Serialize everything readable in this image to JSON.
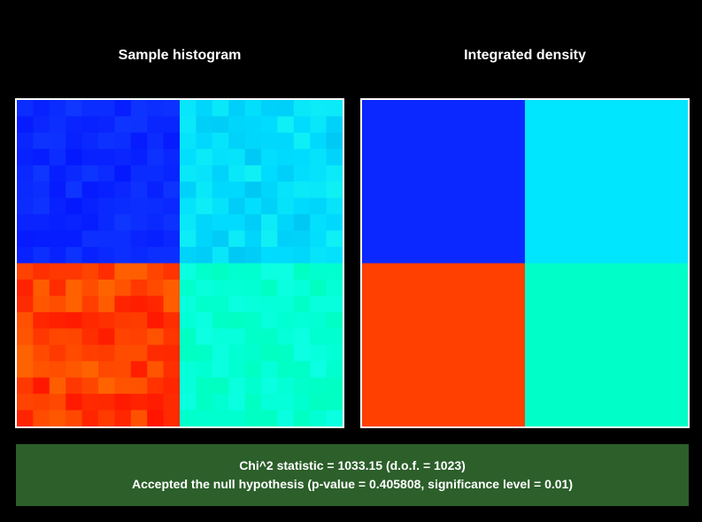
{
  "titles": {
    "left": "Sample histogram",
    "right": "Integrated density"
  },
  "result": {
    "line1": "Chi^2 statistic = 1033.15 (d.o.f. = 1023)",
    "line2": "Accepted the null hypothesis (p-value = 0.405808, significance level = 0.01)",
    "status_color": "#2c5f2a"
  },
  "chart_data": [
    {
      "type": "heatmap",
      "title": "Sample histogram",
      "grid": [
        20,
        20
      ],
      "quadrants": [
        {
          "position": "top-left",
          "color": "#0a28ff",
          "noise": "low"
        },
        {
          "position": "top-right",
          "color": "#00dcff",
          "noise": "low"
        },
        {
          "position": "bottom-left",
          "color": "#ff3c00",
          "noise": "high"
        },
        {
          "position": "bottom-right",
          "color": "#00ffd2",
          "noise": "low"
        }
      ]
    },
    {
      "type": "heatmap",
      "title": "Integrated density",
      "grid": [
        2,
        2
      ],
      "quadrants": [
        {
          "position": "top-left",
          "color": "#0a28ff"
        },
        {
          "position": "top-right",
          "color": "#00e6ff"
        },
        {
          "position": "bottom-left",
          "color": "#ff4000"
        },
        {
          "position": "bottom-right",
          "color": "#00ffc8"
        }
      ]
    }
  ]
}
